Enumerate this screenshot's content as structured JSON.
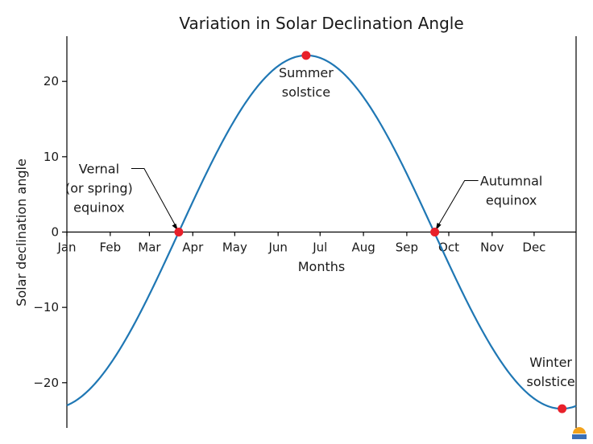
{
  "chart_data": {
    "type": "line",
    "title": "Variation in Solar Declination Angle",
    "xlabel": "Months",
    "ylabel": "Solar declination angle",
    "xlim": [
      1,
      365
    ],
    "ylim": [
      -26,
      26
    ],
    "month_ticks": [
      {
        "day": 1,
        "label": "Jan"
      },
      {
        "day": 32,
        "label": "Feb"
      },
      {
        "day": 60,
        "label": "Mar"
      },
      {
        "day": 91,
        "label": "Apr"
      },
      {
        "day": 121,
        "label": "May"
      },
      {
        "day": 152,
        "label": "Jun"
      },
      {
        "day": 182,
        "label": "Jul"
      },
      {
        "day": 213,
        "label": "Aug"
      },
      {
        "day": 244,
        "label": "Sep"
      },
      {
        "day": 274,
        "label": "Oct"
      },
      {
        "day": 305,
        "label": "Nov"
      },
      {
        "day": 335,
        "label": "Dec"
      }
    ],
    "y_ticks": [
      {
        "value": 20,
        "label": "20"
      },
      {
        "value": 10,
        "label": "10"
      },
      {
        "value": 0,
        "label": "0"
      },
      {
        "value": -10,
        "label": "−10"
      },
      {
        "value": -20,
        "label": "−20"
      }
    ],
    "series": [
      {
        "name": "",
        "color": "#1f77b4",
        "formula": "23.45*sin(2*pi*(284+n)/365)"
      }
    ],
    "markers_color": "#e8202a",
    "points": [
      {
        "key": "vernal",
        "day": 81,
        "value": 0,
        "label_lines": [
          "Vernal",
          "(or spring)",
          "equinox"
        ]
      },
      {
        "key": "summer",
        "day": 172,
        "value": 23.45,
        "label_lines": [
          "Summer",
          "solstice"
        ]
      },
      {
        "key": "autumnal",
        "day": 264,
        "value": 0,
        "label_lines": [
          "Autumnal",
          "equinox"
        ]
      },
      {
        "key": "winter",
        "day": 355,
        "value": -23.45,
        "label_lines": [
          "Winter",
          "solstice"
        ]
      }
    ],
    "grid": false,
    "legend": "none"
  }
}
